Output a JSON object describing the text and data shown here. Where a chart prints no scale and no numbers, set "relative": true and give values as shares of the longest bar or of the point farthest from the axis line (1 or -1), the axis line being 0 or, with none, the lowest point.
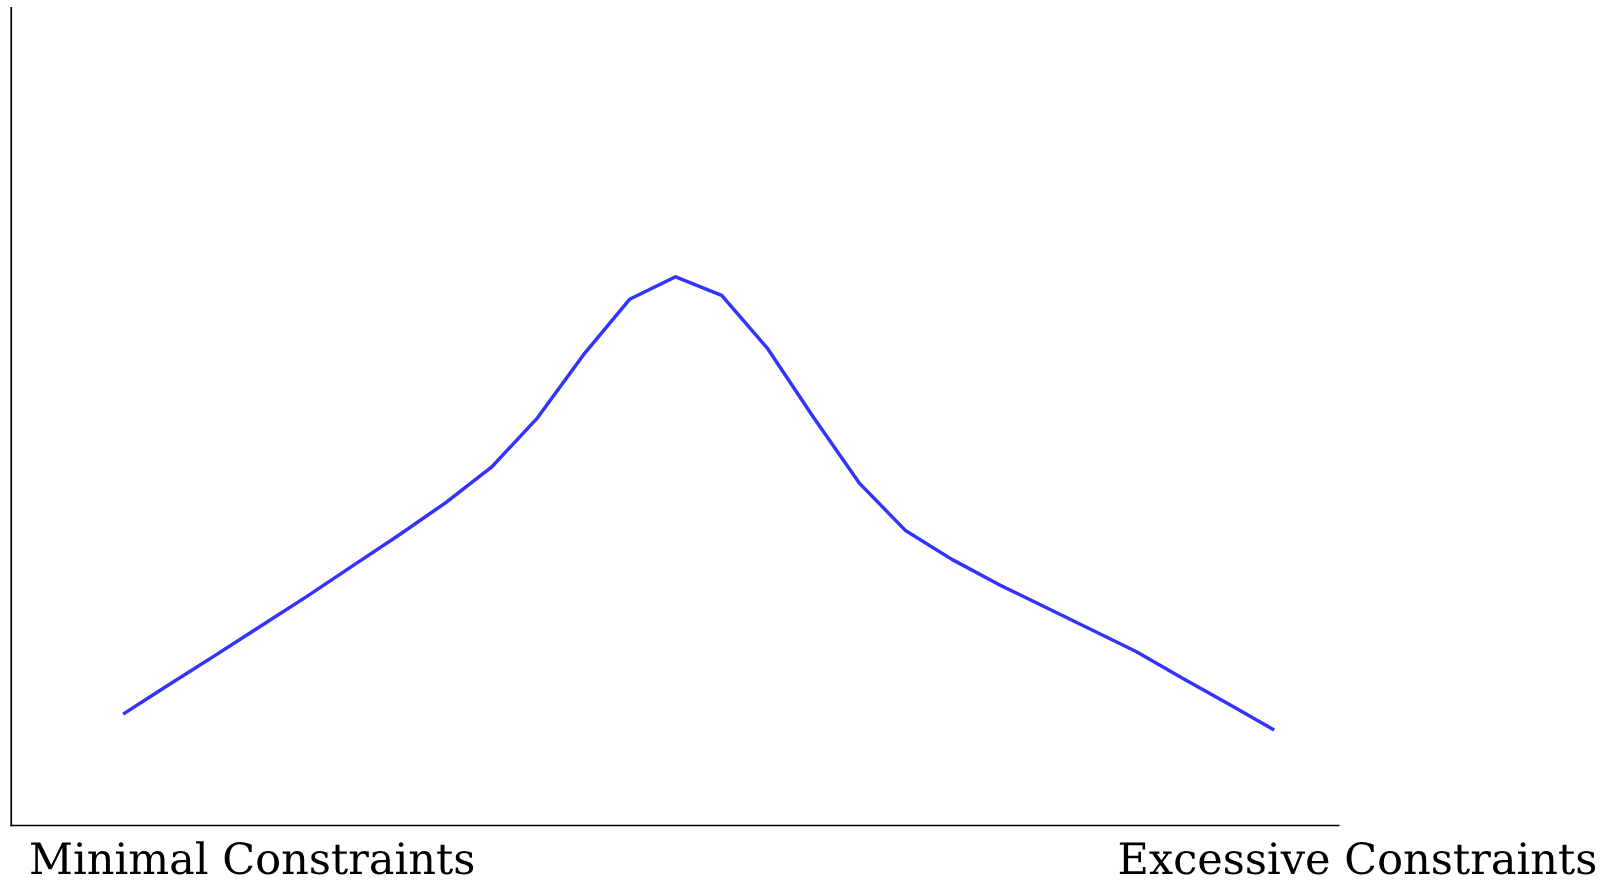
{
  "chart_data": {
    "type": "line",
    "relative": true,
    "grid": false,
    "legend": false,
    "categories": [
      null,
      null,
      null,
      null,
      null,
      null,
      null,
      null,
      null,
      null,
      null,
      null,
      null,
      null,
      null,
      null,
      null,
      null,
      null,
      null,
      null,
      null,
      null,
      null,
      null,
      null
    ],
    "series": [
      {
        "color": "#3333ff",
        "values": [
          0.203,
          0.257,
          0.31,
          0.364,
          0.418,
          0.474,
          0.53,
          0.588,
          0.653,
          0.743,
          0.858,
          0.959,
          1,
          0.966,
          0.869,
          0.743,
          0.623,
          0.537,
          0.485,
          0.44,
          0.399,
          0.358,
          0.317,
          0.269,
          0.222,
          0.174
        ]
      }
    ],
    "annotations": [
      "Minimal Constraints",
      "Excessive Constraints"
    ]
  }
}
